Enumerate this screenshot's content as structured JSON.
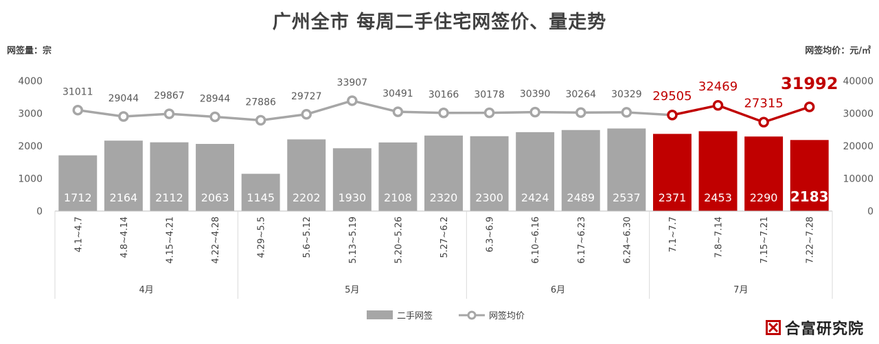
{
  "title": "广州全市 每周二手住宅网签价、量走势",
  "left_axis_unit": "网签量：宗",
  "right_axis_unit": "网签均价：元/㎡",
  "brand": {
    "name": "合富研究院"
  },
  "colors": {
    "bar": "#a6a6a6",
    "bar_highlight": "#c00000",
    "line": "#a6a6a6",
    "line_highlight": "#c00000",
    "text": "#404040"
  },
  "chart_data": {
    "type": "bar+line",
    "categories": [
      "4.1~4.7",
      "4.8~4.14",
      "4.15~4.21",
      "4.22~4.28",
      "4.29~5.5",
      "5.6~5.12",
      "5.13~5.19",
      "5.20~5.26",
      "5.27~6.2",
      "6.3~6.9",
      "6.10~6.16",
      "6.17~6.23",
      "6.24~6.30",
      "7.1~7.7",
      "7.8~7.14",
      "7.15~7.21",
      "7.22~7.28"
    ],
    "groups": [
      {
        "label": "4月",
        "count": 4
      },
      {
        "label": "5月",
        "count": 5
      },
      {
        "label": "6月",
        "count": 4
      },
      {
        "label": "7月",
        "count": 4
      }
    ],
    "series": [
      {
        "name": "二手网签",
        "type": "bar",
        "axis": "left",
        "values": [
          1712,
          2164,
          2112,
          2063,
          1145,
          2202,
          1930,
          2108,
          2320,
          2300,
          2424,
          2489,
          2537,
          2371,
          2453,
          2290,
          2183
        ]
      },
      {
        "name": "网签均价",
        "type": "line",
        "axis": "right",
        "values": [
          31011,
          29044,
          29867,
          28944,
          27886,
          29727,
          33907,
          30491,
          30166,
          30178,
          30390,
          30264,
          30329,
          29505,
          32469,
          27315,
          31992
        ]
      }
    ],
    "highlight_from_index": 13,
    "y_left": {
      "min": 0,
      "max": 4000,
      "ticks": [
        0,
        1000,
        2000,
        3000,
        4000
      ]
    },
    "y_right": {
      "min": 0,
      "max": 40000,
      "ticks": [
        0,
        10000,
        20000,
        30000,
        40000
      ]
    },
    "legend_position": "bottom",
    "grid": false
  }
}
